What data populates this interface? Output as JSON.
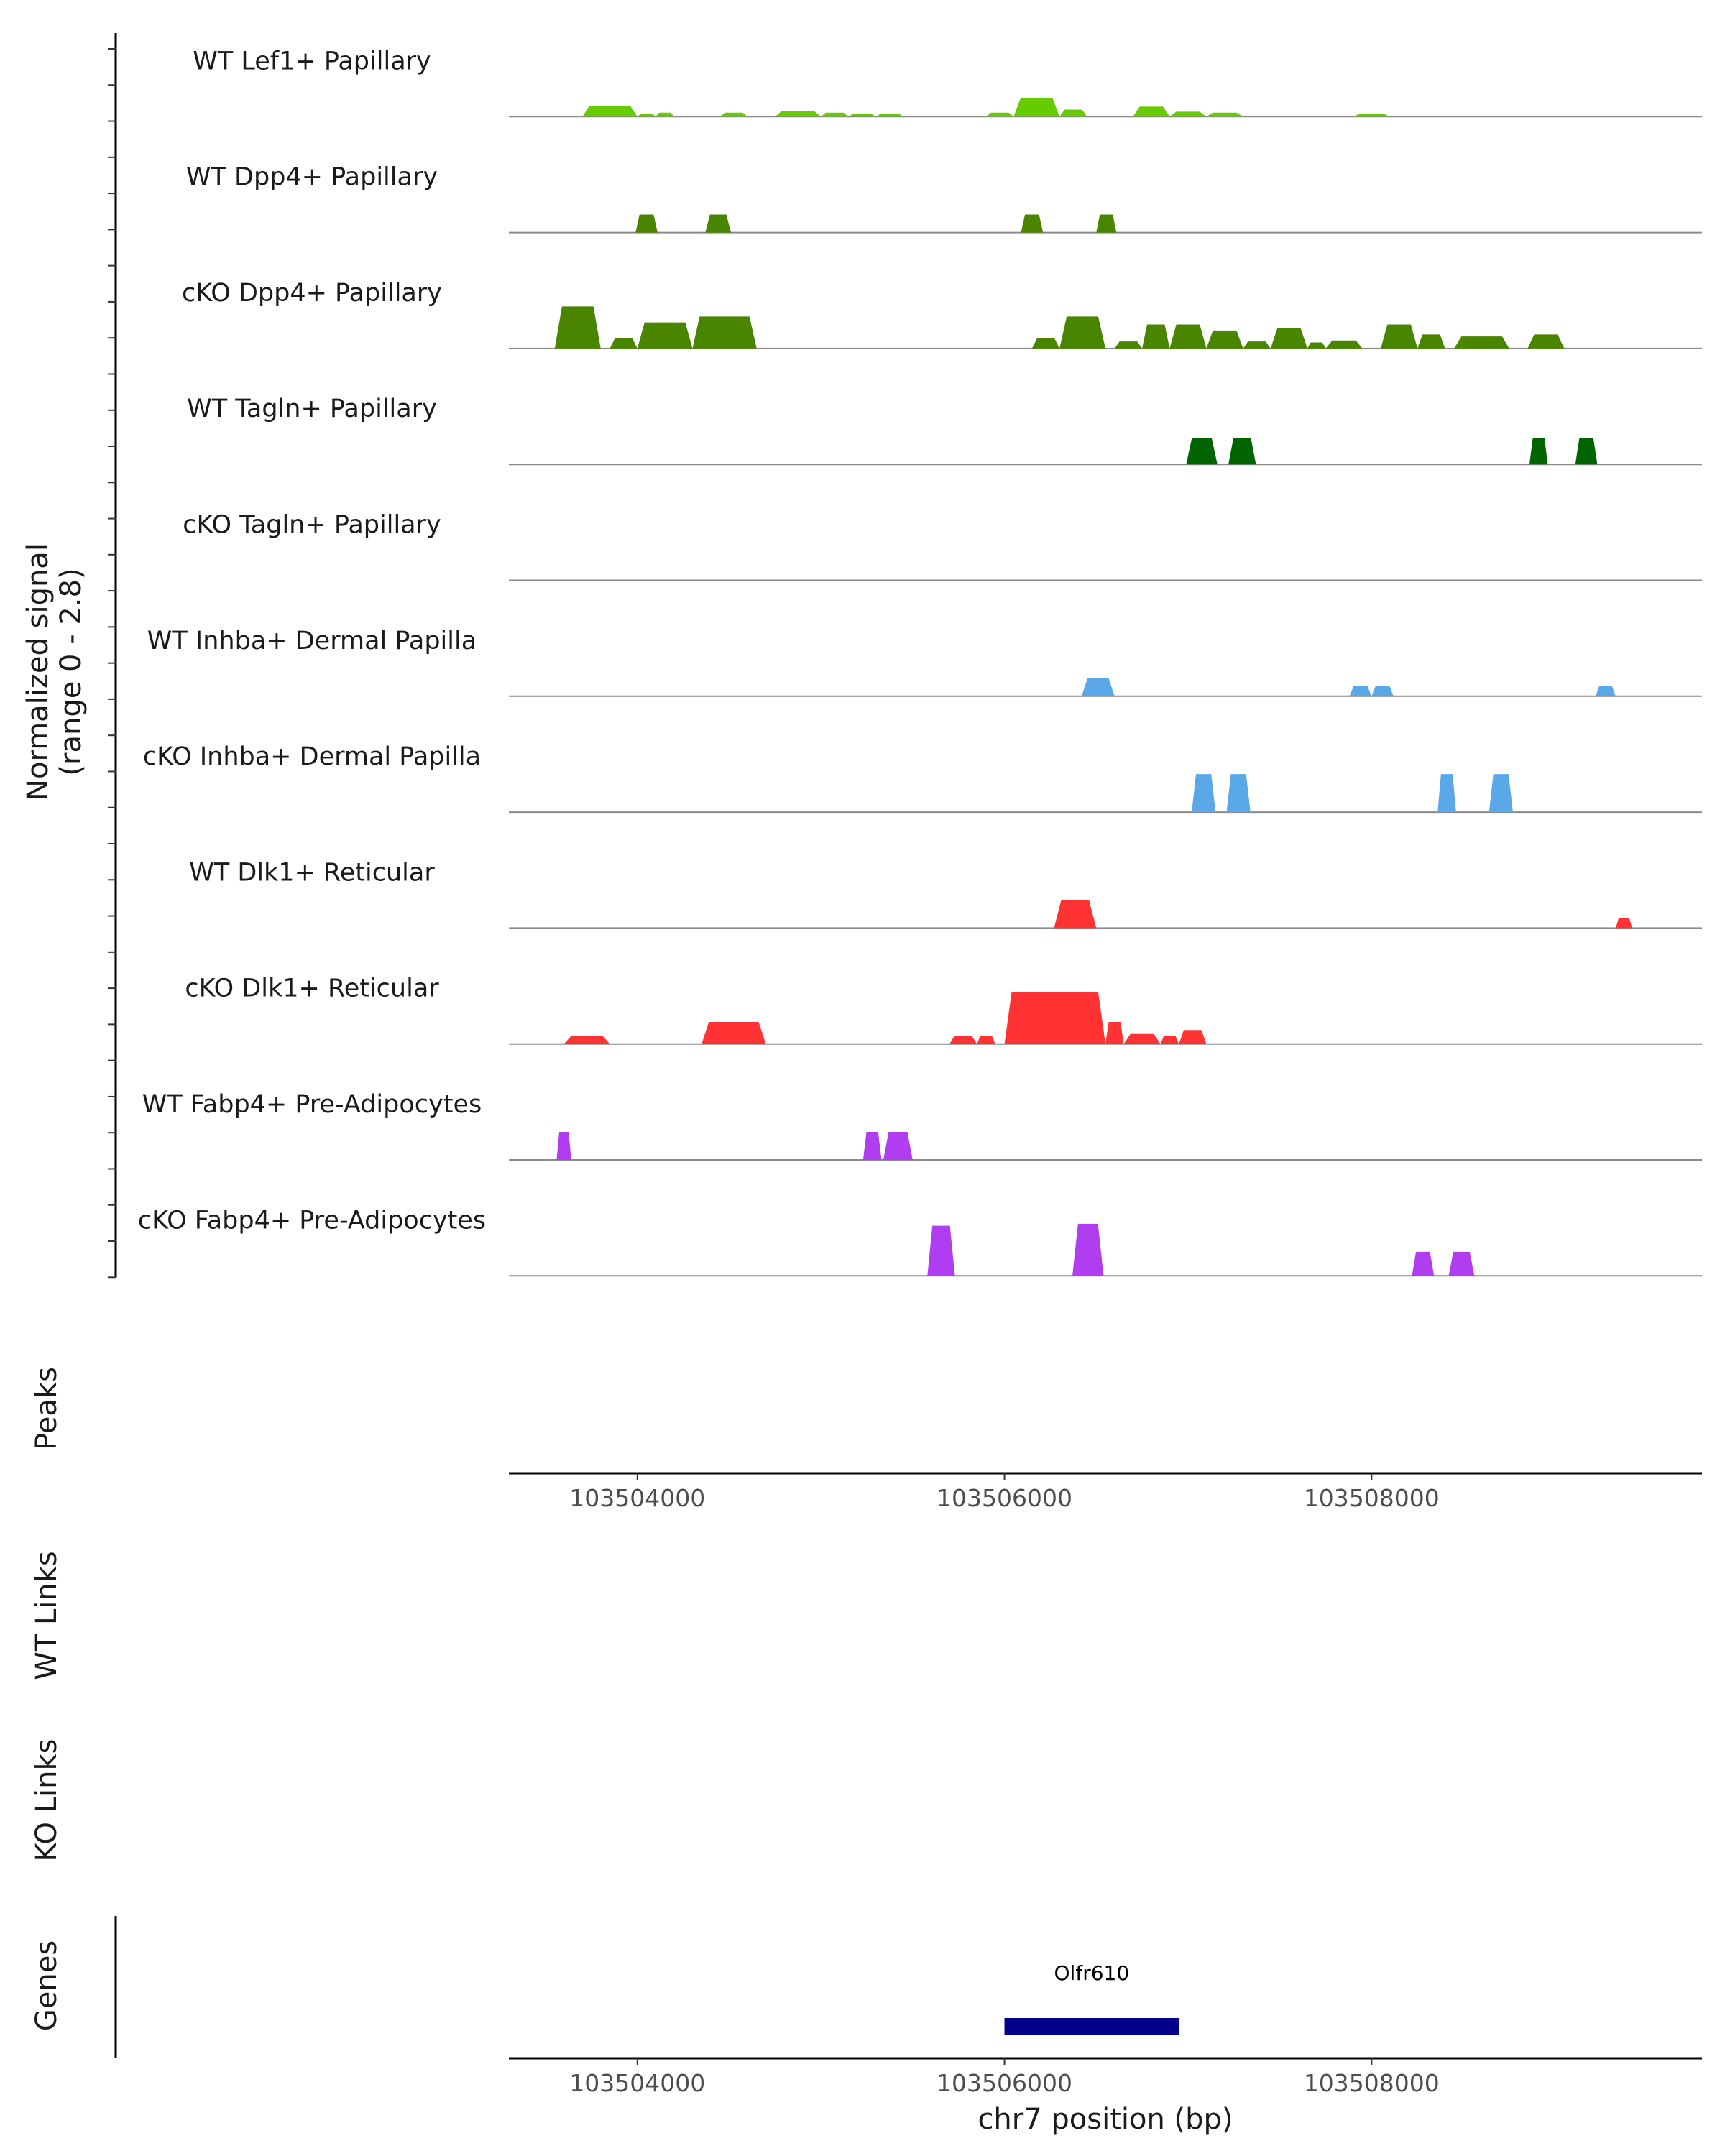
{
  "chart_data": {
    "type": "area",
    "title": "",
    "genome": "chr7",
    "xlabel": "chr7 position (bp)",
    "xlim": [
      103503300,
      103509800
    ],
    "xticks": [
      103504000,
      103506000,
      103508000
    ],
    "xtick_labels": [
      "103504000",
      "103506000",
      "103508000"
    ],
    "ylabel_line1": "Normalized signal",
    "ylabel_line2": "(range 0 - 2.8)",
    "ylim": [
      0,
      2.8
    ],
    "tracks": [
      {
        "name": "WT Lef1+ Papillary",
        "color": "#66cc00",
        "peaks": [
          [
            103503700,
            103504000,
            0.55
          ],
          [
            103504000,
            103504100,
            0.15
          ],
          [
            103504100,
            103504200,
            0.2
          ],
          [
            103504450,
            103504600,
            0.2
          ],
          [
            103504750,
            103505000,
            0.3
          ],
          [
            103505000,
            103505150,
            0.2
          ],
          [
            103505150,
            103505300,
            0.15
          ],
          [
            103505300,
            103505450,
            0.15
          ],
          [
            103505900,
            103506050,
            0.2
          ],
          [
            103506050,
            103506300,
            0.95
          ],
          [
            103506300,
            103506450,
            0.35
          ],
          [
            103506700,
            103506900,
            0.5
          ],
          [
            103506900,
            103507100,
            0.25
          ],
          [
            103507100,
            103507300,
            0.2
          ],
          [
            103507900,
            103508100,
            0.15
          ]
        ]
      },
      {
        "name": "WT Dpp4+ Papillary",
        "color": "#4a8500",
        "peaks": [
          [
            103503990,
            103504110,
            0.9
          ],
          [
            103504370,
            103504510,
            0.9
          ],
          [
            103506090,
            103506210,
            0.9
          ],
          [
            103506500,
            103506610,
            0.9
          ]
        ]
      },
      {
        "name": "cKO Dpp4+ Papillary",
        "color": "#4a8500",
        "peaks": [
          [
            103503550,
            103503800,
            2.1
          ],
          [
            103503850,
            103504000,
            0.5
          ],
          [
            103504000,
            103504300,
            1.3
          ],
          [
            103504300,
            103504650,
            1.6
          ],
          [
            103506150,
            103506300,
            0.5
          ],
          [
            103506300,
            103506550,
            1.6
          ],
          [
            103506600,
            103506750,
            0.35
          ],
          [
            103506750,
            103506900,
            1.2
          ],
          [
            103506900,
            103507100,
            1.2
          ],
          [
            103507100,
            103507300,
            0.9
          ],
          [
            103507300,
            103507450,
            0.35
          ],
          [
            103507450,
            103507650,
            1.0
          ],
          [
            103507650,
            103507750,
            0.3
          ],
          [
            103507750,
            103507950,
            0.4
          ],
          [
            103508050,
            103508250,
            1.2
          ],
          [
            103508250,
            103508400,
            0.7
          ],
          [
            103508450,
            103508750,
            0.6
          ],
          [
            103508850,
            103509050,
            0.7
          ]
        ]
      },
      {
        "name": "WT Tagln+ Papillary",
        "color": "#006400",
        "peaks": [
          [
            103506990,
            103507160,
            1.3
          ],
          [
            103507220,
            103507370,
            1.3
          ],
          [
            103508860,
            103508960,
            1.3
          ],
          [
            103509110,
            103509230,
            1.3
          ]
        ]
      },
      {
        "name": "cKO Tagln+ Papillary",
        "color": "#006400",
        "peaks": []
      },
      {
        "name": "WT Inhba+ Dermal Papilla",
        "color": "#5aa8e8",
        "peaks": [
          [
            103506420,
            103506600,
            0.9
          ],
          [
            103507880,
            103508000,
            0.5
          ],
          [
            103508000,
            103508120,
            0.5
          ],
          [
            103509220,
            103509330,
            0.5
          ]
        ]
      },
      {
        "name": "cKO Inhba+ Dermal Papilla",
        "color": "#5aa8e8",
        "peaks": [
          [
            103507020,
            103507150,
            1.9
          ],
          [
            103507210,
            103507340,
            1.9
          ],
          [
            103508360,
            103508460,
            1.9
          ],
          [
            103508640,
            103508770,
            1.9
          ]
        ]
      },
      {
        "name": "WT Dlk1+ Reticular",
        "color": "#ff3333",
        "peaks": [
          [
            103506270,
            103506500,
            1.4
          ],
          [
            103509330,
            103509420,
            0.5
          ]
        ]
      },
      {
        "name": "cKO Dlk1+ Reticular",
        "color": "#ff3333",
        "peaks": [
          [
            103503600,
            103503850,
            0.4
          ],
          [
            103504350,
            103504700,
            1.1
          ],
          [
            103505700,
            103505850,
            0.4
          ],
          [
            103505850,
            103505950,
            0.4
          ],
          [
            103506000,
            103506550,
            2.6
          ],
          [
            103506550,
            103506650,
            1.1
          ],
          [
            103506650,
            103506850,
            0.5
          ],
          [
            103506850,
            103506950,
            0.4
          ],
          [
            103506950,
            103507100,
            0.7
          ]
        ]
      },
      {
        "name": "WT Fabp4+ Pre-Adipocytes",
        "color": "#b03df0",
        "peaks": [
          [
            103503560,
            103503640,
            1.4
          ],
          [
            103505230,
            103505330,
            1.4
          ],
          [
            103505340,
            103505500,
            1.4
          ]
        ]
      },
      {
        "name": "cKO Fabp4+ Pre-Adipocytes",
        "color": "#b03df0",
        "peaks": [
          [
            103505580,
            103505730,
            2.5
          ],
          [
            103506370,
            103506540,
            2.6
          ],
          [
            103508220,
            103508340,
            1.2
          ],
          [
            103508420,
            103508560,
            1.2
          ]
        ]
      }
    ],
    "panels": {
      "peaks_label": "Peaks",
      "wt_links_label": "WT Links",
      "ko_links_label": "KO Links",
      "genes_label": "Genes"
    },
    "genes": [
      {
        "name": "Olfr610",
        "start": 103506000,
        "end": 103506950,
        "color": "#00008b"
      }
    ]
  }
}
